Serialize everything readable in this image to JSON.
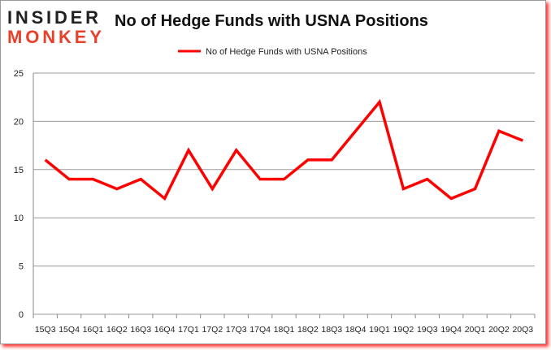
{
  "logo": {
    "line1": "INSIDER",
    "line2": "MONKEY"
  },
  "chart_data": {
    "type": "line",
    "title": "No of Hedge Funds with USNA Positions",
    "categories": [
      "15Q3",
      "15Q4",
      "16Q1",
      "16Q2",
      "16Q3",
      "16Q4",
      "17Q1",
      "17Q2",
      "17Q3",
      "17Q4",
      "18Q1",
      "18Q2",
      "18Q3",
      "18Q4",
      "19Q1",
      "19Q2",
      "19Q3",
      "19Q4",
      "20Q1",
      "20Q2",
      "20Q3"
    ],
    "series": [
      {
        "name": "No of Hedge Funds with USNA Positions",
        "color": "#ff0000",
        "values": [
          16,
          14,
          14,
          13,
          14,
          12,
          17,
          13,
          17,
          14,
          14,
          16,
          16,
          19,
          22,
          13,
          14,
          12,
          13,
          19,
          18
        ]
      }
    ],
    "ylim": [
      0,
      25
    ],
    "yticks": [
      0,
      5,
      10,
      15,
      20,
      25
    ],
    "grid": true,
    "legend": "top-center"
  }
}
